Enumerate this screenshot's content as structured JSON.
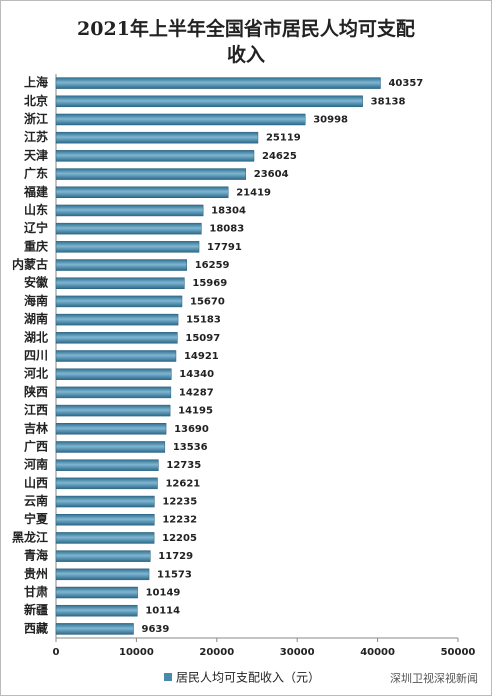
{
  "chart_data": {
    "type": "barh",
    "title": [
      "2021年上半年全国省市居民人均可支配",
      "收入"
    ],
    "categories": [
      "上海",
      "北京",
      "浙江",
      "江苏",
      "天津",
      "广东",
      "福建",
      "山东",
      "辽宁",
      "重庆",
      "内蒙古",
      "安徽",
      "海南",
      "湖南",
      "湖北",
      "四川",
      "河北",
      "陕西",
      "江西",
      "吉林",
      "广西",
      "河南",
      "山西",
      "云南",
      "宁夏",
      "黑龙江",
      "青海",
      "贵州",
      "甘肃",
      "新疆",
      "西藏"
    ],
    "series": [
      {
        "name": "居民人均可支配收入（元）",
        "color": "#4a8aaa",
        "values": [
          40357,
          38138,
          30998,
          25119,
          24625,
          23604,
          21419,
          18304,
          18083,
          17791,
          16259,
          15969,
          15670,
          15183,
          15097,
          14921,
          14340,
          14287,
          14195,
          13690,
          13536,
          12735,
          12621,
          12235,
          12232,
          12205,
          11729,
          11573,
          10149,
          10114,
          9639
        ]
      }
    ],
    "xlim": [
      0,
      50000
    ],
    "xticks": [
      0,
      10000,
      20000,
      30000,
      40000,
      50000
    ],
    "legend": "bottom",
    "watermark": "深圳卫视深视新闻"
  }
}
